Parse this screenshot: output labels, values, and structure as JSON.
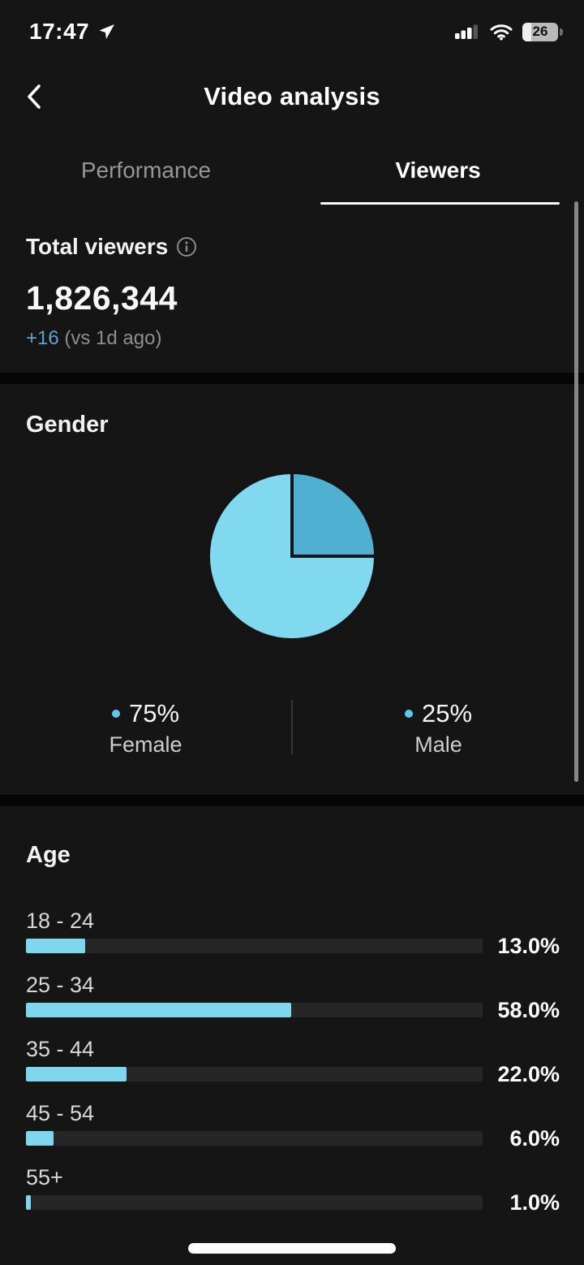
{
  "status_bar": {
    "time": "17:47",
    "battery_level": "26"
  },
  "header": {
    "title": "Video analysis"
  },
  "tabs": [
    {
      "label": "Performance",
      "active": false
    },
    {
      "label": "Viewers",
      "active": true
    }
  ],
  "total_viewers": {
    "label": "Total viewers",
    "value": "1,826,344",
    "change": "+16",
    "change_suffix": "(vs 1d ago)"
  },
  "gender": {
    "heading": "Gender",
    "legend": [
      {
        "percent": "75%",
        "label": "Female",
        "dot_color": "#5ec9e9"
      },
      {
        "percent": "25%",
        "label": "Male",
        "dot_color": "#5ec9e9"
      }
    ]
  },
  "age": {
    "heading": "Age"
  },
  "chart_data": [
    {
      "type": "pie",
      "title": "Gender",
      "slices": [
        {
          "label": "Male",
          "value": 25,
          "color": "#4fb0d2"
        },
        {
          "label": "Female",
          "value": 75,
          "color": "#80d9ee"
        }
      ],
      "start_angle_deg": -90,
      "direction": "clockwise",
      "separator_color": "#141414",
      "legend_position": "bottom"
    },
    {
      "type": "bar",
      "title": "Age",
      "orientation": "horizontal",
      "categories": [
        "18 - 24",
        "25 - 34",
        "35 - 44",
        "45 - 54",
        "55+"
      ],
      "values": [
        13.0,
        58.0,
        22.0,
        6.0,
        1.0
      ],
      "value_labels": [
        "13.0%",
        "58.0%",
        "22.0%",
        "6.0%",
        "1.0%"
      ],
      "xlim": [
        0,
        100
      ],
      "bar_color": "#7fd7ee",
      "track_color": "#262626",
      "grid": false
    }
  ],
  "colors": {
    "accent_cyan": "#7fd7ee",
    "accent_cyan_dark": "#4fb0d2",
    "change_blue": "#61a3cc",
    "background": "#151515"
  }
}
